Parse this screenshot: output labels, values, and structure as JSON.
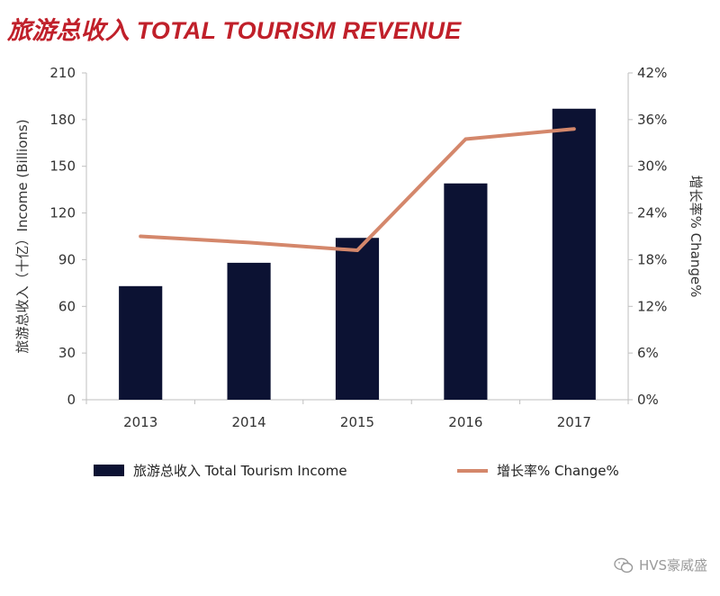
{
  "title": "旅游总收入 TOTAL TOURISM REVENUE",
  "watermark": "HVS豪威盛",
  "colors": {
    "title": "#c0202a",
    "bar": "#0c1233",
    "line": "#d4876b",
    "axis": "#bfbfbf"
  },
  "chart_data": {
    "type": "bar",
    "categories": [
      "2013",
      "2014",
      "2015",
      "2016",
      "2017"
    ],
    "series": [
      {
        "name": "旅游总收入 Total Tourism Income",
        "type": "bar",
        "axis": "left",
        "values": [
          73,
          88,
          104,
          139,
          187
        ]
      },
      {
        "name": "增长率% Change%",
        "type": "line",
        "axis": "right",
        "values": [
          21,
          20.2,
          19.2,
          33.5,
          34.8
        ]
      }
    ],
    "y_left": {
      "label": "旅游总收入（十亿）Income (Billions)",
      "ylim": [
        0,
        210
      ],
      "ticks": [
        "0",
        "30",
        "60",
        "90",
        "120",
        "150",
        "180",
        "210"
      ]
    },
    "y_right": {
      "label": "增长率% Change%",
      "ylim": [
        0,
        42
      ],
      "ticks": [
        "0%",
        "6%",
        "12%",
        "18%",
        "24%",
        "30%",
        "36%",
        "42%"
      ]
    },
    "legend_position": "bottom",
    "grid": false
  }
}
